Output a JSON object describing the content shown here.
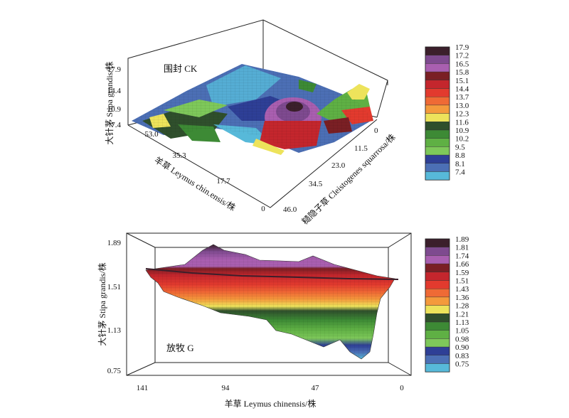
{
  "chart_data": [
    {
      "type": "surface3d",
      "panel_label": "围封 CK",
      "z_label": "大针茅 Stipa grandis/株",
      "x_label": "羊草 Leymus chin.ensis/株",
      "y_label": "糙隐子草 Cleistogenes squarrosa/株",
      "z_ticks": [
        "17.9",
        "14.4",
        "10.9",
        "7.4"
      ],
      "x_ticks": [
        "53.0",
        "35.3",
        "17.7",
        "0"
      ],
      "y_ticks": [
        "0",
        "11.5",
        "23.0",
        "34.5",
        "46.0"
      ],
      "zlim": [
        7.4,
        17.9
      ],
      "xlim": [
        0,
        53.0
      ],
      "ylim": [
        0,
        46.0
      ],
      "legend_levels": [
        "17.9",
        "17.2",
        "16.5",
        "15.8",
        "15.1",
        "14.4",
        "13.7",
        "13.0",
        "12.3",
        "11.6",
        "10.9",
        "10.2",
        "9.5",
        "8.8",
        "8.1",
        "7.4"
      ],
      "legend_colors": [
        "#3b1f2b",
        "#7e4a8f",
        "#a95fb0",
        "#7a1f24",
        "#c4262d",
        "#e23a2e",
        "#ef6a35",
        "#f49a3c",
        "#ede35b",
        "#2f4f2c",
        "#3d8a35",
        "#5fb044",
        "#7ec85a",
        "#2e3f96",
        "#4c6fb5",
        "#57b9d9"
      ]
    },
    {
      "type": "surface3d",
      "panel_label": "放牧 G",
      "z_label": "大针茅 Stipa grandis/株",
      "x_label": "羊草 Leymus chinensis/株",
      "z_ticks": [
        "1.89",
        "1.51",
        "1.13",
        "0.75"
      ],
      "x_ticks": [
        "141",
        "94",
        "47",
        "0"
      ],
      "zlim": [
        0.75,
        1.89
      ],
      "xlim": [
        0,
        141
      ],
      "legend_levels": [
        "1.89",
        "1.81",
        "1.74",
        "1.66",
        "1.59",
        "1.51",
        "1.43",
        "1.36",
        "1.28",
        "1.21",
        "1.13",
        "1.05",
        "0.98",
        "0.90",
        "0.83",
        "0.75"
      ],
      "legend_colors": [
        "#3b1f2b",
        "#7e4a8f",
        "#a95fb0",
        "#7a1f24",
        "#c4262d",
        "#e23a2e",
        "#ef6a35",
        "#f49a3c",
        "#ede35b",
        "#2f4f2c",
        "#3d8a35",
        "#5fb044",
        "#7ec85a",
        "#2e3f96",
        "#4c6fb5",
        "#57b9d9"
      ]
    }
  ]
}
